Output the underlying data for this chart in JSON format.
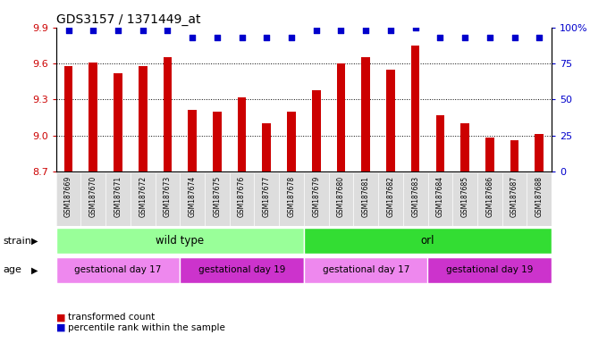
{
  "title": "GDS3157 / 1371449_at",
  "samples": [
    "GSM187669",
    "GSM187670",
    "GSM187671",
    "GSM187672",
    "GSM187673",
    "GSM187674",
    "GSM187675",
    "GSM187676",
    "GSM187677",
    "GSM187678",
    "GSM187679",
    "GSM187680",
    "GSM187681",
    "GSM187682",
    "GSM187683",
    "GSM187684",
    "GSM187685",
    "GSM187686",
    "GSM187687",
    "GSM187688"
  ],
  "bar_values": [
    9.58,
    9.61,
    9.52,
    9.58,
    9.65,
    9.21,
    9.2,
    9.32,
    9.1,
    9.2,
    9.38,
    9.6,
    9.65,
    9.55,
    9.75,
    9.17,
    9.1,
    8.98,
    8.96,
    9.01
  ],
  "percentile_values": [
    98,
    98,
    98,
    98,
    98,
    93,
    93,
    93,
    93,
    93,
    98,
    98,
    98,
    98,
    100,
    93,
    93,
    93,
    93,
    93
  ],
  "ymin": 8.7,
  "ymax": 9.9,
  "yticks": [
    8.7,
    9.0,
    9.3,
    9.6,
    9.9
  ],
  "right_yticks": [
    0,
    25,
    50,
    75,
    100
  ],
  "bar_color": "#cc0000",
  "dot_color": "#0000cc",
  "strain_groups": [
    {
      "label": "wild type",
      "start": 0,
      "end": 10,
      "color": "#99ff99"
    },
    {
      "label": "orl",
      "start": 10,
      "end": 20,
      "color": "#33dd33"
    }
  ],
  "age_groups": [
    {
      "label": "gestational day 17",
      "start": 0,
      "end": 5,
      "color": "#ee88ee"
    },
    {
      "label": "gestational day 19",
      "start": 5,
      "end": 10,
      "color": "#cc33cc"
    },
    {
      "label": "gestational day 17",
      "start": 10,
      "end": 15,
      "color": "#ee88ee"
    },
    {
      "label": "gestational day 19",
      "start": 15,
      "end": 20,
      "color": "#cc33cc"
    }
  ],
  "strain_label": "strain",
  "age_label": "age",
  "legend_bar_label": "transformed count",
  "legend_dot_label": "percentile rank within the sample",
  "bg_color": "#ffffff",
  "axis_label_color_left": "#cc0000",
  "axis_label_color_right": "#0000cc",
  "xtick_bg_color": "#dddddd"
}
